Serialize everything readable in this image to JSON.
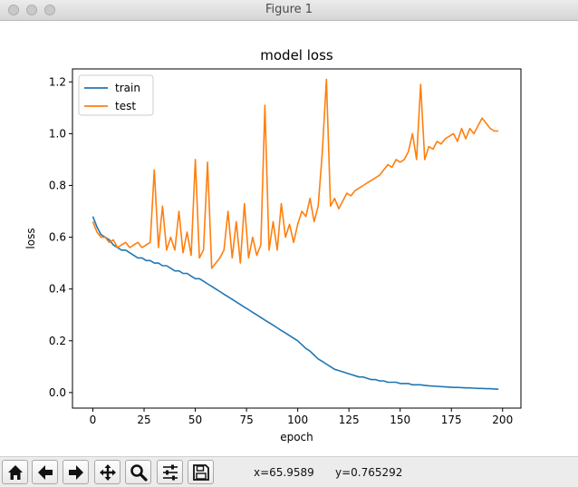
{
  "window": {
    "title": "Figure 1"
  },
  "toolbar": {
    "buttons": [
      {
        "name": "home-button",
        "icon": "home-icon"
      },
      {
        "name": "back-button",
        "icon": "arrow-left-icon"
      },
      {
        "name": "forward-button",
        "icon": "arrow-right-icon"
      },
      {
        "name": "pan-button",
        "icon": "move-icon"
      },
      {
        "name": "zoom-button",
        "icon": "magnifier-icon"
      },
      {
        "name": "configure-subplots-button",
        "icon": "sliders-icon"
      },
      {
        "name": "save-button",
        "icon": "floppy-disk-icon"
      }
    ],
    "coord_x": "x=65.9589",
    "coord_y": "y=0.765292"
  },
  "chart_data": {
    "type": "line",
    "title": "model loss",
    "xlabel": "epoch",
    "ylabel": "loss",
    "xlim": [
      -9.95,
      208.95
    ],
    "ylim": [
      -0.06,
      1.25
    ],
    "xticks": [
      0,
      25,
      50,
      75,
      100,
      125,
      150,
      175,
      200
    ],
    "yticks": [
      0.0,
      0.2,
      0.4,
      0.6,
      0.8,
      1.0,
      1.2
    ],
    "grid": false,
    "legend": "upper left",
    "series": [
      {
        "name": "train",
        "color": "#1f77b4",
        "x": [
          0,
          2,
          4,
          6,
          8,
          10,
          12,
          14,
          16,
          18,
          20,
          22,
          24,
          26,
          28,
          30,
          32,
          34,
          36,
          38,
          40,
          42,
          44,
          46,
          48,
          50,
          52,
          54,
          56,
          58,
          60,
          62,
          64,
          66,
          68,
          70,
          72,
          74,
          76,
          78,
          80,
          82,
          84,
          86,
          88,
          90,
          92,
          94,
          96,
          98,
          100,
          102,
          104,
          106,
          108,
          110,
          112,
          114,
          116,
          118,
          120,
          122,
          124,
          126,
          128,
          130,
          132,
          134,
          136,
          138,
          140,
          142,
          144,
          146,
          148,
          150,
          152,
          154,
          156,
          158,
          160,
          162,
          164,
          166,
          168,
          170,
          172,
          174,
          176,
          178,
          180,
          182,
          184,
          186,
          188,
          190,
          192,
          194,
          196,
          198
        ],
        "values": [
          0.68,
          0.64,
          0.61,
          0.6,
          0.59,
          0.57,
          0.56,
          0.55,
          0.55,
          0.54,
          0.53,
          0.52,
          0.52,
          0.51,
          0.51,
          0.5,
          0.5,
          0.49,
          0.49,
          0.48,
          0.47,
          0.47,
          0.46,
          0.46,
          0.45,
          0.44,
          0.44,
          0.43,
          0.42,
          0.41,
          0.4,
          0.39,
          0.38,
          0.37,
          0.36,
          0.35,
          0.34,
          0.33,
          0.32,
          0.31,
          0.3,
          0.29,
          0.28,
          0.27,
          0.26,
          0.25,
          0.24,
          0.23,
          0.22,
          0.21,
          0.2,
          0.185,
          0.17,
          0.16,
          0.145,
          0.13,
          0.12,
          0.11,
          0.1,
          0.09,
          0.085,
          0.08,
          0.075,
          0.07,
          0.065,
          0.06,
          0.06,
          0.055,
          0.05,
          0.05,
          0.045,
          0.045,
          0.04,
          0.04,
          0.04,
          0.035,
          0.035,
          0.035,
          0.03,
          0.03,
          0.03,
          0.028,
          0.026,
          0.025,
          0.024,
          0.023,
          0.022,
          0.021,
          0.02,
          0.02,
          0.019,
          0.018,
          0.018,
          0.017,
          0.016,
          0.016,
          0.015,
          0.015,
          0.014,
          0.013
        ]
      },
      {
        "name": "test",
        "color": "#ff7f0e",
        "x": [
          0,
          2,
          4,
          6,
          8,
          10,
          12,
          14,
          16,
          18,
          20,
          22,
          24,
          26,
          28,
          30,
          32,
          34,
          36,
          38,
          40,
          42,
          44,
          46,
          48,
          50,
          52,
          54,
          56,
          58,
          60,
          62,
          64,
          66,
          68,
          70,
          72,
          74,
          76,
          78,
          80,
          82,
          84,
          86,
          88,
          90,
          92,
          94,
          96,
          98,
          100,
          102,
          104,
          106,
          108,
          110,
          112,
          114,
          116,
          118,
          120,
          122,
          124,
          126,
          128,
          130,
          132,
          134,
          136,
          138,
          140,
          142,
          144,
          146,
          148,
          150,
          152,
          154,
          156,
          158,
          160,
          162,
          164,
          166,
          168,
          170,
          172,
          174,
          176,
          178,
          180,
          182,
          184,
          186,
          188,
          190,
          192,
          194,
          196,
          198
        ],
        "values": [
          0.66,
          0.62,
          0.6,
          0.6,
          0.58,
          0.59,
          0.56,
          0.57,
          0.58,
          0.56,
          0.57,
          0.58,
          0.56,
          0.57,
          0.58,
          0.86,
          0.56,
          0.72,
          0.55,
          0.6,
          0.55,
          0.7,
          0.54,
          0.62,
          0.53,
          0.9,
          0.52,
          0.55,
          0.89,
          0.48,
          0.5,
          0.52,
          0.55,
          0.7,
          0.52,
          0.66,
          0.5,
          0.73,
          0.52,
          0.6,
          0.53,
          0.57,
          1.11,
          0.55,
          0.66,
          0.55,
          0.73,
          0.6,
          0.65,
          0.58,
          0.65,
          0.7,
          0.68,
          0.75,
          0.66,
          0.72,
          0.93,
          1.21,
          0.72,
          0.75,
          0.71,
          0.74,
          0.77,
          0.76,
          0.78,
          0.79,
          0.8,
          0.81,
          0.82,
          0.83,
          0.84,
          0.86,
          0.88,
          0.87,
          0.9,
          0.89,
          0.9,
          0.93,
          1.0,
          0.9,
          1.19,
          0.9,
          0.95,
          0.94,
          0.97,
          0.96,
          0.98,
          0.99,
          1.0,
          0.97,
          1.02,
          0.98,
          1.02,
          1.0,
          1.03,
          1.06,
          1.04,
          1.02,
          1.01,
          1.01
        ]
      }
    ]
  }
}
